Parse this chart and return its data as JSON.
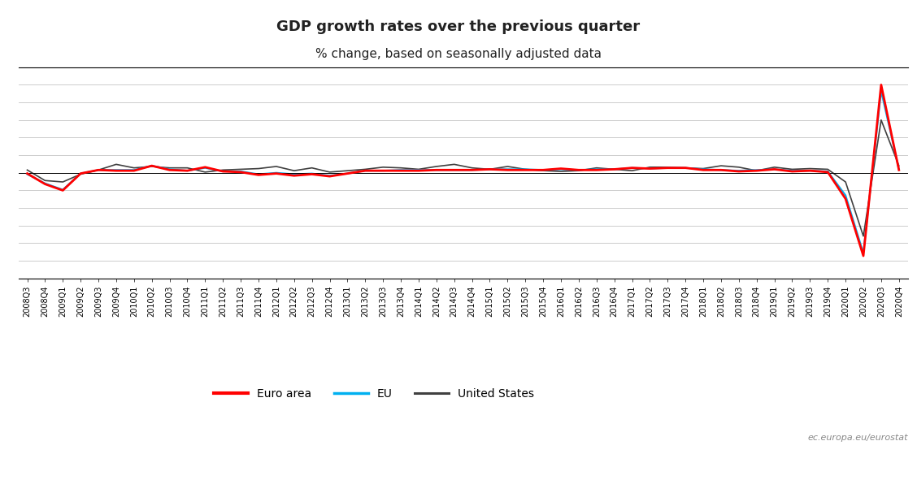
{
  "title": "GDP growth rates over the previous quarter",
  "subtitle": "% change, based on seasonally adjusted data",
  "watermark": "ec.europa.eu/eurostat",
  "background_color": "#ffffff",
  "plot_bg_color": "#ffffff",
  "grid_color": "#cccccc",
  "ylim": [
    -15,
    15
  ],
  "yticks": [
    -15,
    -12.5,
    -10,
    -7.5,
    -5,
    -2.5,
    0,
    2.5,
    5,
    7.5,
    10,
    12.5,
    15
  ],
  "series": {
    "Euro area": {
      "color": "#ff0000",
      "linewidth": 2.0,
      "zorder": 3
    },
    "EU": {
      "color": "#00b0f0",
      "linewidth": 1.5,
      "zorder": 2
    },
    "United States": {
      "color": "#404040",
      "linewidth": 1.2,
      "zorder": 1
    }
  },
  "quarters": [
    "2008Q3",
    "2008Q4",
    "2009Q1",
    "2009Q2",
    "2009Q3",
    "2009Q4",
    "2010Q1",
    "2010Q2",
    "2010Q3",
    "2010Q4",
    "2011Q1",
    "2011Q2",
    "2011Q3",
    "2011Q4",
    "2012Q1",
    "2012Q2",
    "2012Q3",
    "2012Q4",
    "2013Q1",
    "2013Q2",
    "2013Q3",
    "2013Q4",
    "2014Q1",
    "2014Q2",
    "2014Q3",
    "2014Q4",
    "2015Q1",
    "2015Q2",
    "2015Q3",
    "2015Q4",
    "2016Q1",
    "2016Q2",
    "2016Q3",
    "2016Q4",
    "2017Q1",
    "2017Q2",
    "2017Q3",
    "2017Q4",
    "2018Q1",
    "2018Q2",
    "2018Q3",
    "2018Q4",
    "2019Q1",
    "2019Q2",
    "2019Q3",
    "2019Q4",
    "2020Q1",
    "2020Q2",
    "2020Q3",
    "2020Q4"
  ],
  "euro_area": [
    -0.1,
    -1.6,
    -2.5,
    -0.1,
    0.4,
    0.3,
    0.3,
    1.0,
    0.4,
    0.3,
    0.8,
    0.2,
    0.1,
    -0.3,
    -0.1,
    -0.4,
    -0.2,
    -0.5,
    -0.1,
    0.3,
    0.3,
    0.3,
    0.3,
    0.4,
    0.4,
    0.4,
    0.5,
    0.4,
    0.4,
    0.4,
    0.6,
    0.4,
    0.4,
    0.5,
    0.7,
    0.6,
    0.7,
    0.7,
    0.4,
    0.4,
    0.2,
    0.3,
    0.5,
    0.2,
    0.3,
    0.1,
    -3.7,
    -11.8,
    12.5,
    0.4
  ],
  "eu": [
    -0.2,
    -1.5,
    -2.4,
    -0.1,
    0.4,
    0.4,
    0.4,
    1.0,
    0.5,
    0.3,
    0.7,
    0.2,
    0.2,
    -0.2,
    0.0,
    -0.2,
    -0.1,
    -0.4,
    -0.1,
    0.3,
    0.3,
    0.4,
    0.4,
    0.4,
    0.4,
    0.4,
    0.5,
    0.5,
    0.5,
    0.4,
    0.5,
    0.4,
    0.5,
    0.5,
    0.7,
    0.6,
    0.7,
    0.7,
    0.5,
    0.4,
    0.3,
    0.4,
    0.5,
    0.3,
    0.3,
    0.2,
    -3.2,
    -11.4,
    11.6,
    0.5
  ],
  "us": [
    0.4,
    -1.1,
    -1.3,
    -0.2,
    0.4,
    1.2,
    0.7,
    0.9,
    0.7,
    0.7,
    0.1,
    0.4,
    0.5,
    0.6,
    0.9,
    0.3,
    0.7,
    0.1,
    0.3,
    0.5,
    0.8,
    0.7,
    0.5,
    0.9,
    1.2,
    0.7,
    0.5,
    0.9,
    0.5,
    0.3,
    0.2,
    0.3,
    0.7,
    0.5,
    0.3,
    0.8,
    0.8,
    0.7,
    0.6,
    1.0,
    0.8,
    0.3,
    0.8,
    0.5,
    0.6,
    0.5,
    -1.3,
    -9.0,
    7.5,
    1.0
  ]
}
